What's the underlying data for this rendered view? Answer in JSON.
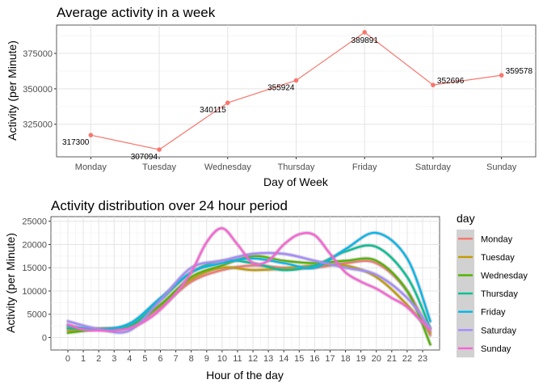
{
  "chart_data": [
    {
      "type": "line",
      "title": "Average activity in a week",
      "xlabel": "Day of Week",
      "ylabel": "Activity (per Minute)",
      "categories": [
        "Monday",
        "Tuesday",
        "Wednesday",
        "Thursday",
        "Friday",
        "Saturday",
        "Sunday"
      ],
      "values": [
        317300,
        307094,
        340115,
        355924,
        389891,
        352696,
        359578
      ],
      "data_labels": [
        "317300",
        "307094",
        "340115",
        "355924",
        "389891",
        "352696",
        "359578"
      ],
      "ylim": [
        302000,
        395000
      ],
      "yticks": [
        325000,
        350000,
        375000
      ],
      "ytick_labels": [
        "325000",
        "350000",
        "375000"
      ],
      "line_color": "#f8766d",
      "grid": true
    },
    {
      "type": "line",
      "title": "Activity distribution over 24 hour period",
      "xlabel": "Hour of the day",
      "ylabel": "Activity (per Minute)",
      "x": [
        0,
        1,
        2,
        3,
        4,
        5,
        6,
        7,
        8,
        9,
        10,
        11,
        12,
        13,
        14,
        15,
        16,
        17,
        18,
        19,
        20,
        21,
        22,
        23
      ],
      "xtick_labels": [
        "0",
        "1",
        "2",
        "3",
        "4",
        "5",
        "6",
        "7",
        "8",
        "9",
        "10",
        "11",
        "12",
        "13",
        "14",
        "15",
        "16",
        "17",
        "18",
        "19",
        "20",
        "21",
        "22",
        "23"
      ],
      "xlim": [
        -1.1,
        24.1
      ],
      "ylim": [
        -2700,
        26000
      ],
      "yticks": [
        0,
        5000,
        10000,
        15000,
        20000,
        25000
      ],
      "ytick_labels": [
        "0",
        "5000",
        "10000",
        "15000",
        "20000",
        "25000"
      ],
      "legend_title": "day",
      "legend_position": "right",
      "grid": true,
      "series": [
        {
          "name": "Monday",
          "color": "#f8766d",
          "x": [
            0,
            2,
            4,
            6,
            8,
            10,
            12,
            14,
            16,
            18,
            20,
            22,
            23.5
          ],
          "y": [
            2000,
            1800,
            2200,
            6500,
            12000,
            14500,
            15500,
            15000,
            15000,
            16000,
            16000,
            10000,
            500
          ]
        },
        {
          "name": "Tuesday",
          "color": "#c49a00",
          "x": [
            0,
            2,
            4,
            6,
            8,
            10,
            12,
            14,
            16,
            18,
            20,
            22,
            23.5
          ],
          "y": [
            1500,
            1800,
            2500,
            7000,
            12500,
            15000,
            14500,
            14800,
            15500,
            15500,
            13000,
            7000,
            1000
          ]
        },
        {
          "name": "Wednesday",
          "color": "#53b400",
          "x": [
            0,
            2,
            4,
            6,
            8,
            10,
            12,
            14,
            16,
            18,
            20,
            22,
            23.5
          ],
          "y": [
            1000,
            1800,
            2500,
            7000,
            13000,
            15500,
            17500,
            16500,
            16000,
            16500,
            16500,
            10000,
            -1500
          ]
        },
        {
          "name": "Thursday",
          "color": "#00c094",
          "x": [
            0,
            2,
            4,
            6,
            8,
            10,
            12,
            14,
            16,
            18,
            20,
            22,
            23.5
          ],
          "y": [
            2000,
            1800,
            2500,
            8000,
            14000,
            16500,
            16000,
            14500,
            15500,
            18500,
            19500,
            13000,
            2000
          ]
        },
        {
          "name": "Friday",
          "color": "#00b6eb",
          "x": [
            0,
            2,
            4,
            6,
            8,
            10,
            12,
            14,
            16,
            18,
            20,
            22,
            23.5
          ],
          "y": [
            2500,
            1800,
            3000,
            8500,
            14000,
            16000,
            17000,
            16000,
            15000,
            19000,
            22500,
            17000,
            3500
          ]
        },
        {
          "name": "Saturday",
          "color": "#a58aff",
          "x": [
            0,
            2,
            4,
            6,
            8,
            10,
            12,
            14,
            16,
            18,
            20,
            22,
            23.5
          ],
          "y": [
            3500,
            1800,
            1500,
            8000,
            15000,
            16500,
            18000,
            18000,
            16500,
            15000,
            13500,
            8500,
            2000
          ]
        },
        {
          "name": "Sunday",
          "color": "#fb61d7",
          "x": [
            0,
            1,
            2,
            3,
            4,
            5,
            6,
            7,
            8,
            9,
            10,
            11,
            12,
            13,
            14,
            15,
            16,
            17,
            18,
            19,
            20,
            21,
            22,
            23.5
          ],
          "y": [
            2800,
            1700,
            1500,
            1500,
            2000,
            3500,
            6000,
            9500,
            14000,
            20500,
            23500,
            20000,
            16000,
            16500,
            20000,
            22200,
            22000,
            18000,
            14000,
            12000,
            10500,
            8500,
            6500,
            1500
          ]
        }
      ]
    }
  ]
}
